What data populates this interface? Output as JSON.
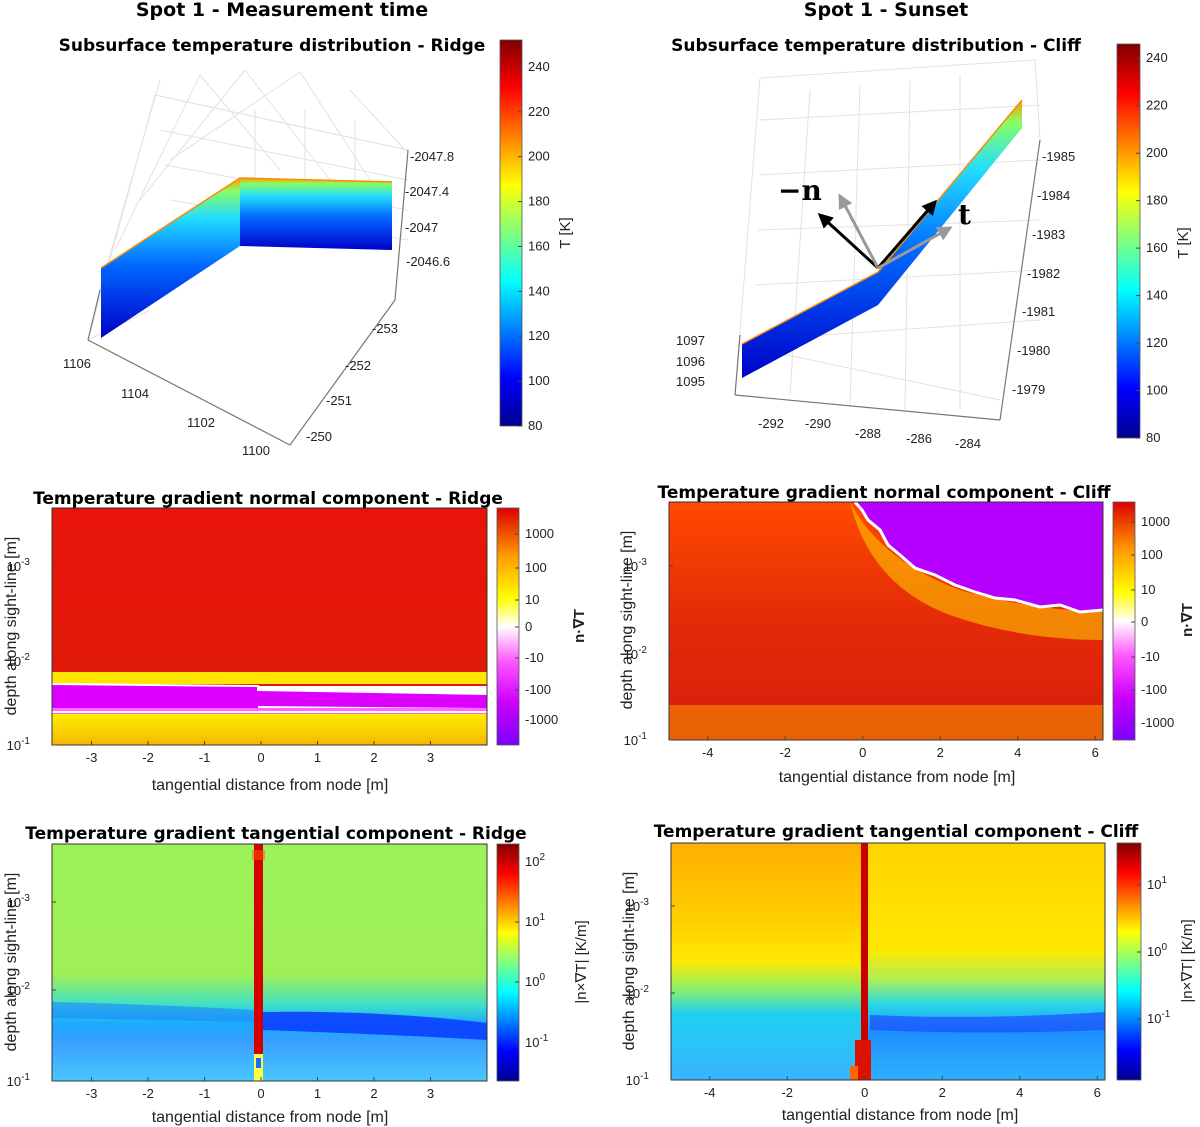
{
  "column_titles": [
    "Spot 1 - Measurement time",
    "Spot 1 - Sunset"
  ],
  "colors": {
    "grid": "#e2e2e2",
    "axis": "#777777",
    "tick_text": "#222222"
  },
  "chart_data": [
    {
      "type": "surface3d",
      "title": "Subsurface temperature distribution - Ridge",
      "x_ticks": [
        "1106",
        "1104",
        "1102",
        "1100"
      ],
      "y_ticks": [
        "-253",
        "-252",
        "-251",
        "-250"
      ],
      "z_ticks": [
        "-2047.8",
        "-2047.4",
        "-2047",
        "-2046.6"
      ],
      "colorbar": {
        "label": "T [K]",
        "ticks": [
          "240",
          "220",
          "200",
          "180",
          "160",
          "140",
          "120",
          "100",
          "80"
        ],
        "range": [
          80,
          252
        ]
      }
    },
    {
      "type": "surface3d",
      "title": "Subsurface temperature distribution - Cliff",
      "x_ticks": [
        "-292",
        "-290",
        "-288",
        "-286",
        "-284"
      ],
      "y_ticks": [
        "1097",
        "1096",
        "1095"
      ],
      "z_ticks": [
        "-1985",
        "-1984",
        "-1983",
        "-1982",
        "-1981",
        "-1980",
        "-1979"
      ],
      "vectors": [
        "−n",
        "t"
      ],
      "colorbar": {
        "label": "T [K]",
        "ticks": [
          "240",
          "220",
          "200",
          "180",
          "160",
          "140",
          "120",
          "100",
          "80"
        ],
        "range": [
          80,
          246
        ]
      }
    },
    {
      "type": "heatmap",
      "title": "Temperature gradient normal component - Ridge",
      "xlabel": "tangential distance from node [m]",
      "ylabel": "depth along sight-line [m]",
      "x_ticks": [
        "-3",
        "-2",
        "-1",
        "0",
        "1",
        "2",
        "3"
      ],
      "y_ticks": [
        "10",
        "10",
        "10"
      ],
      "y_exps": [
        "-3",
        "-2",
        "-1"
      ],
      "xlim": [
        -3.7,
        4
      ],
      "colorbar": {
        "label": "n·∇T",
        "ticks": [
          "1000",
          "100",
          "10",
          "0",
          "-10",
          "-100",
          "-1000"
        ]
      }
    },
    {
      "type": "heatmap",
      "title": "Temperature gradient normal component - Cliff",
      "xlabel": "tangential distance from node [m]",
      "ylabel": "depth along sight-line [m]",
      "x_ticks": [
        "-4",
        "-2",
        "0",
        "2",
        "4",
        "6"
      ],
      "y_ticks": [
        "10",
        "10",
        "10"
      ],
      "y_exps": [
        "-3",
        "-2",
        "-1"
      ],
      "xlim": [
        -5,
        6.2
      ],
      "colorbar": {
        "label": "n·∇T",
        "ticks": [
          "1000",
          "100",
          "10",
          "0",
          "-10",
          "-100",
          "-1000"
        ]
      }
    },
    {
      "type": "heatmap",
      "title": "Temperature gradient tangential component - Ridge",
      "xlabel": "tangential distance from node [m]",
      "ylabel": "depth along sight-line [m]",
      "x_ticks": [
        "-3",
        "-2",
        "-1",
        "0",
        "1",
        "2",
        "3"
      ],
      "y_ticks": [
        "10",
        "10",
        "10"
      ],
      "y_exps": [
        "-3",
        "-2",
        "-1"
      ],
      "xlim": [
        -3.7,
        4
      ],
      "colorbar": {
        "label": "|n×∇T|  [K/m]",
        "ticks": [
          "10",
          "10",
          "10",
          "10"
        ],
        "tick_exps": [
          "2",
          "1",
          "0",
          "-1"
        ]
      }
    },
    {
      "type": "heatmap",
      "title": "Temperature gradient tangential component - Cliff",
      "xlabel": "tangential distance from node [m]",
      "ylabel": "depth along sight-line [m]",
      "x_ticks": [
        "-4",
        "-2",
        "0",
        "2",
        "4",
        "6"
      ],
      "y_ticks": [
        "10",
        "10",
        "10"
      ],
      "y_exps": [
        "-3",
        "-2",
        "-1"
      ],
      "xlim": [
        -5,
        6.2
      ],
      "colorbar": {
        "label": "|n×∇T|  [K/m]",
        "ticks": [
          "10",
          "10",
          "10"
        ],
        "tick_exps": [
          "1",
          "0",
          "-1"
        ]
      }
    }
  ]
}
